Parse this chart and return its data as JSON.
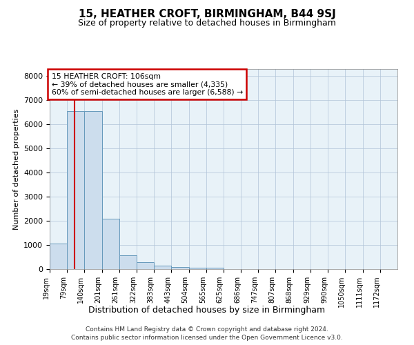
{
  "title": "15, HEATHER CROFT, BIRMINGHAM, B44 9SJ",
  "subtitle": "Size of property relative to detached houses in Birmingham",
  "xlabel": "Distribution of detached houses by size in Birmingham",
  "ylabel": "Number of detached properties",
  "bar_color": "#ccdded",
  "bar_edge_color": "#6699bb",
  "grid_color": "#b0c4d8",
  "bg_color": "#e8f2f8",
  "property_line_x": 106,
  "property_line_color": "#cc0000",
  "annotation_text": "15 HEATHER CROFT: 106sqm\n← 39% of detached houses are smaller (4,335)\n60% of semi-detached houses are larger (6,588) →",
  "annotation_box_color": "#ffffff",
  "annotation_box_edge": "#cc0000",
  "footer_line1": "Contains HM Land Registry data © Crown copyright and database right 2024.",
  "footer_line2": "Contains public sector information licensed under the Open Government Licence v3.0.",
  "bin_edges": [
    19,
    79,
    140,
    201,
    261,
    322,
    383,
    443,
    504,
    565,
    625,
    686,
    747,
    807,
    868,
    929,
    990,
    1050,
    1111,
    1172,
    1232
  ],
  "bar_heights": [
    1050,
    6550,
    6550,
    2100,
    570,
    290,
    140,
    95,
    60,
    55,
    10,
    5,
    5,
    2,
    2,
    1,
    1,
    0,
    0,
    0
  ],
  "ylim": [
    0,
    8300
  ],
  "yticks": [
    0,
    1000,
    2000,
    3000,
    4000,
    5000,
    6000,
    7000,
    8000
  ]
}
